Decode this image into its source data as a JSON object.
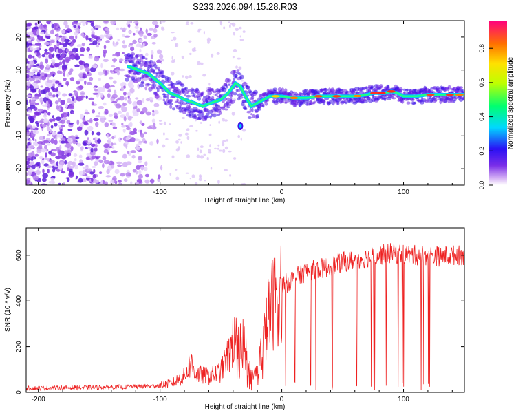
{
  "figure_title": "S233.2026.094.15.28.R03",
  "chart_data": [
    {
      "type": "heatmap",
      "title": "S233.2026.094.15.28.R03",
      "xlabel": "Height of straight line (km)",
      "ylabel": "Frequency (Hz)",
      "xlim": [
        -210,
        150
      ],
      "ylim": [
        -25,
        25
      ],
      "xticks": [
        -200,
        -100,
        0,
        100
      ],
      "yticks": [
        -20,
        -10,
        0,
        10,
        20
      ],
      "colorbar": {
        "label": "Normalized spectral amplitude",
        "range": [
          0,
          1
        ],
        "ticks": [
          "0.0",
          "0.2",
          "0.4",
          "0.6",
          "0.8"
        ]
      },
      "ridge": {
        "name": "dominant spectral line",
        "x": [
          -125,
          -118,
          -110,
          -100,
          -92,
          -85,
          -80,
          -72,
          -65,
          -58,
          -50,
          -44,
          -38,
          -34,
          -30,
          -25,
          -20,
          -15,
          -10,
          -5,
          0,
          10,
          20,
          30,
          40,
          50,
          60,
          70,
          75,
          80,
          85,
          90,
          95,
          100,
          110,
          120,
          130,
          140,
          150
        ],
        "y": [
          11,
          10,
          9,
          6,
          3,
          2,
          1,
          0,
          -1,
          0,
          1,
          3,
          6,
          5,
          2,
          -1,
          0,
          1,
          2,
          2,
          2,
          1.5,
          1.5,
          2,
          2,
          2,
          2,
          2.5,
          3,
          3,
          3,
          3.5,
          3,
          2,
          2,
          2.5,
          2.5,
          2.5,
          2.5
        ]
      },
      "noise_region": "scattered purple speckle from -210 to -100 km, full frequency range"
    },
    {
      "type": "line",
      "title": "",
      "xlabel": "Height of straight line (km)",
      "ylabel": "SNR (10 * v/v)",
      "xlim": [
        -210,
        150
      ],
      "ylim": [
        0,
        720
      ],
      "xticks": [
        -200,
        -100,
        0,
        100
      ],
      "yticks": [
        0,
        200,
        400,
        600
      ],
      "series": [
        {
          "name": "SNR",
          "color": "#ee2222",
          "x": [
            -210,
            -180,
            -150,
            -120,
            -100,
            -90,
            -80,
            -75,
            -70,
            -60,
            -50,
            -45,
            -40,
            -35,
            -30,
            -25,
            -20,
            -15,
            -10,
            -5,
            0,
            5,
            10,
            20,
            30,
            40,
            50,
            60,
            70,
            80,
            90,
            100,
            110,
            120,
            130,
            140,
            150
          ],
          "values": [
            18,
            20,
            22,
            25,
            30,
            40,
            70,
            130,
            80,
            70,
            90,
            150,
            220,
            250,
            200,
            60,
            100,
            220,
            360,
            420,
            470,
            480,
            500,
            530,
            540,
            550,
            570,
            580,
            590,
            600,
            610,
            605,
            600,
            600,
            595,
            600,
            600
          ],
          "dropouts_below_km": 20
        }
      ]
    }
  ],
  "colors": {
    "line": "#ee2222",
    "axis": "#000000",
    "background": "#ffffff"
  }
}
